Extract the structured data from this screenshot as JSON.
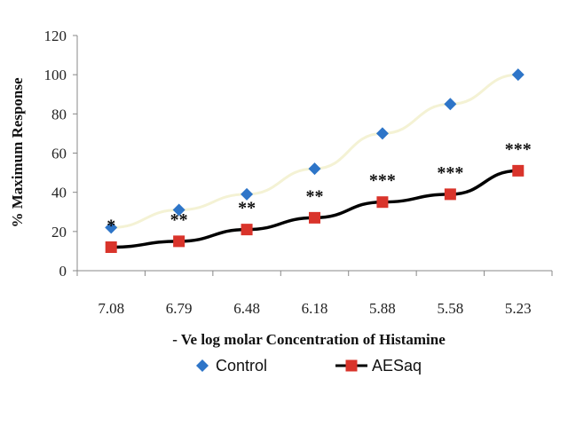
{
  "chart_data": {
    "type": "line",
    "title": "",
    "xlabel": "- Ve log molar Concentration of Histamine",
    "ylabel": "% Maximum Response",
    "categories": [
      "7.08",
      "6.79",
      "6.48",
      "6.18",
      "5.88",
      "5.58",
      "5.23"
    ],
    "ylim": [
      0,
      120
    ],
    "yticks": [
      "0",
      "20",
      "40",
      "60",
      "80",
      "100",
      "120"
    ],
    "grid": false,
    "legend_position": "bottom",
    "series": [
      {
        "name": "Control",
        "marker": "diamond",
        "color": "#2E75C8",
        "line_color": "#F4F2D4",
        "values": [
          22,
          31,
          39,
          52,
          70,
          85,
          100
        ]
      },
      {
        "name": "AESaq",
        "marker": "square",
        "color": "#D9342B",
        "line_color": "#000000",
        "values": [
          12,
          15,
          21,
          27,
          35,
          39,
          51
        ]
      }
    ],
    "annotations": [
      "*",
      "**",
      "**",
      "**",
      "***",
      "***",
      "***"
    ]
  }
}
